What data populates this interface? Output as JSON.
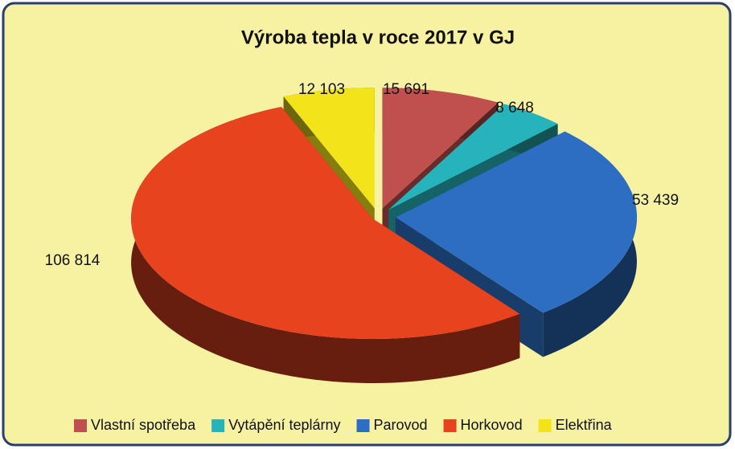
{
  "chart_data": {
    "type": "pie3d",
    "title": "Výroba tepla v roce 2017 v GJ",
    "categories": [
      "Vlastní spotřeba",
      "Vytápění teplárny",
      "Parovod",
      "Horkovod",
      "Elektřina"
    ],
    "values": [
      15691,
      8648,
      53439,
      106814,
      12103
    ],
    "value_labels": [
      "15 691",
      "8 648",
      "53 439",
      "106 814",
      "12 103"
    ],
    "colors": [
      "#c0504d",
      "#27b3bb",
      "#2d6ec2",
      "#e8431f",
      "#f3e31b"
    ],
    "legend": "bottom"
  }
}
